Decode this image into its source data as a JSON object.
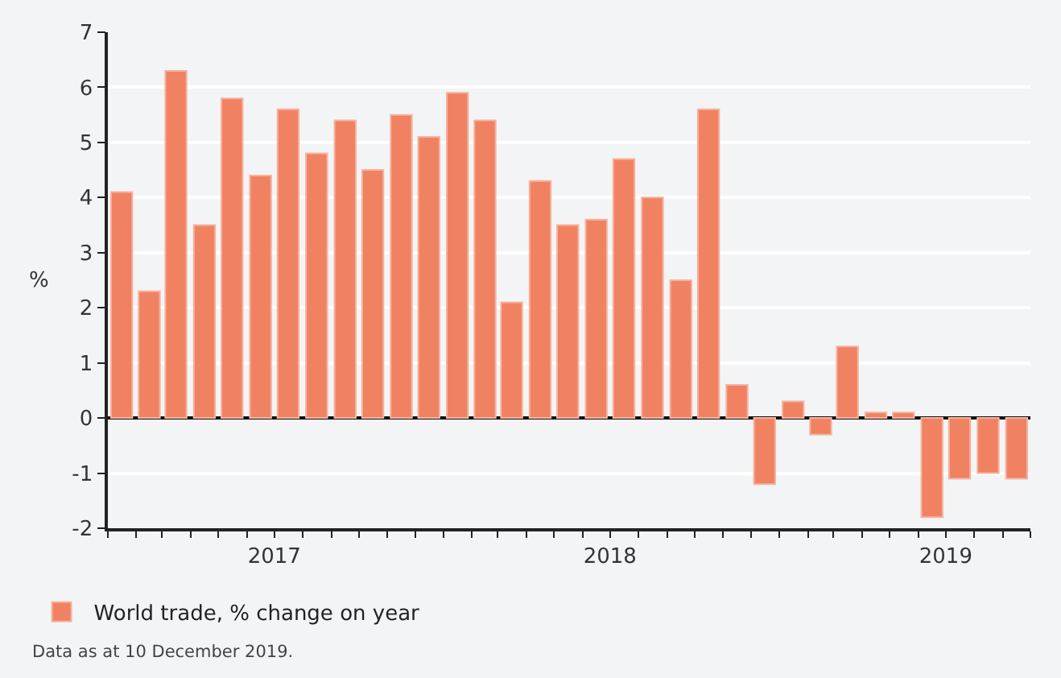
{
  "chart_data": {
    "type": "bar",
    "ylabel": "%",
    "x": [
      "2017-01-16",
      "2017-02-15",
      "2017-03-16",
      "2017-04-16",
      "2017-05-16",
      "2017-06-16",
      "2017-07-16",
      "2017-08-16",
      "2017-09-16",
      "2017-10-16",
      "2017-11-16",
      "2017-12-16",
      "2018-01-16",
      "2018-02-15",
      "2018-03-16",
      "2018-04-16",
      "2018-05-16",
      "2018-06-16",
      "2018-07-16",
      "2018-08-16",
      "2018-09-16",
      "2018-10-16",
      "2018-11-16",
      "2018-12-16",
      "2019-01-16",
      "2019-02-15",
      "2019-03-16",
      "2019-04-16",
      "2019-05-16",
      "2019-06-16",
      "2019-07-16",
      "2019-08-16",
      "2019-09-16"
    ],
    "series": [
      {
        "name": "World trade, % change on year",
        "color": "#f08262",
        "values": [
          4.1,
          2.3,
          6.3,
          3.5,
          5.8,
          4.4,
          5.6,
          4.8,
          5.4,
          4.5,
          5.5,
          5.1,
          5.9,
          5.4,
          2.1,
          4.3,
          3.5,
          3.6,
          4.7,
          4.0,
          2.5,
          5.6,
          0.6,
          -1.2,
          0.3,
          -0.3,
          1.3,
          0.1,
          0.1,
          -1.8,
          -1.1,
          -1.0,
          -1.1
        ]
      }
    ],
    "xlim": [
      "2017-01-01",
      "2019-10-01"
    ],
    "xticks": [
      {
        "value": "2017-01-01",
        "label": null
      },
      {
        "value": "2017-02-01",
        "label": null
      },
      {
        "value": "2017-03-01",
        "label": null
      },
      {
        "value": "2017-04-01",
        "label": null
      },
      {
        "value": "2017-05-01",
        "label": null
      },
      {
        "value": "2017-06-01",
        "label": null
      },
      {
        "value": "2017-07-01",
        "label": "2017"
      },
      {
        "value": "2017-08-01",
        "label": null
      },
      {
        "value": "2017-09-01",
        "label": null
      },
      {
        "value": "2017-10-01",
        "label": null
      },
      {
        "value": "2017-11-01",
        "label": null
      },
      {
        "value": "2017-12-01",
        "label": null
      },
      {
        "value": "2018-01-01",
        "label": null
      },
      {
        "value": "2018-02-01",
        "label": null
      },
      {
        "value": "2018-03-01",
        "label": null
      },
      {
        "value": "2018-04-01",
        "label": null
      },
      {
        "value": "2018-05-01",
        "label": null
      },
      {
        "value": "2018-06-01",
        "label": null
      },
      {
        "value": "2018-07-01",
        "label": "2018"
      },
      {
        "value": "2018-08-01",
        "label": null
      },
      {
        "value": "2018-09-01",
        "label": null
      },
      {
        "value": "2018-10-01",
        "label": null
      },
      {
        "value": "2018-11-01",
        "label": null
      },
      {
        "value": "2018-12-01",
        "label": null
      },
      {
        "value": "2019-01-01",
        "label": null
      },
      {
        "value": "2019-02-01",
        "label": null
      },
      {
        "value": "2019-03-01",
        "label": null
      },
      {
        "value": "2019-04-01",
        "label": null
      },
      {
        "value": "2019-05-01",
        "label": null
      },
      {
        "value": "2019-06-01",
        "label": null
      },
      {
        "value": "2019-07-01",
        "label": "2019"
      },
      {
        "value": "2019-08-01",
        "label": null
      },
      {
        "value": "2019-09-01",
        "label": null
      },
      {
        "value": "2019-10-01",
        "label": null
      }
    ],
    "ylim": [
      -2,
      7
    ],
    "yticks": [
      -2,
      -1,
      0,
      1,
      2,
      3,
      4,
      5,
      6,
      7
    ],
    "grid": "y",
    "legend": "bottom left",
    "annotations": [
      "Data as at 10 December 2019."
    ]
  }
}
